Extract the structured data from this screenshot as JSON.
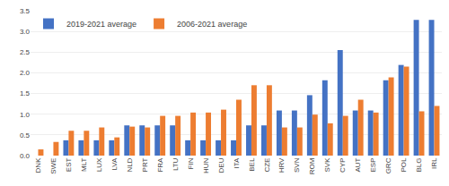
{
  "chart_data": {
    "type": "bar",
    "categories": [
      "DNK",
      "SWE",
      "EST",
      "MLT",
      "LUX",
      "LVA",
      "NLD",
      "PRT",
      "FRA",
      "LTU",
      "FIN",
      "HUN",
      "DEU",
      "ITA",
      "BEL",
      "CZE",
      "HRV",
      "SVN",
      "ROM",
      "SVK",
      "CYP",
      "AUT",
      "ESP",
      "GRC",
      "POL",
      "BLG",
      "IRL"
    ],
    "series": [
      {
        "name": "2019-2021 average",
        "color": "#4472C4",
        "values": [
          0.0,
          0.0,
          0.37,
          0.37,
          0.37,
          0.37,
          0.73,
          0.73,
          0.73,
          0.73,
          0.37,
          0.37,
          0.37,
          0.37,
          0.73,
          0.73,
          1.09,
          1.09,
          1.46,
          1.82,
          2.55,
          1.09,
          1.09,
          1.82,
          2.19,
          3.28,
          3.28
        ]
      },
      {
        "name": "2006-2021 average",
        "color": "#ED7D31",
        "values": [
          0.15,
          0.33,
          0.6,
          0.6,
          0.68,
          0.44,
          0.7,
          0.68,
          0.96,
          0.96,
          1.04,
          1.04,
          1.11,
          1.35,
          1.7,
          1.7,
          0.68,
          0.68,
          0.99,
          0.78,
          0.96,
          1.35,
          1.04,
          1.89,
          2.15,
          1.07,
          1.2
        ]
      }
    ],
    "ylim": [
      0,
      3.5
    ],
    "yticks": [
      {
        "value": 0,
        "label": "0.0"
      },
      0.5,
      {
        "value": 1,
        "label": "1.0"
      },
      1.5,
      {
        "value": 2,
        "label": "2.0"
      },
      2.5,
      {
        "value": 3,
        "label": "3.0"
      },
      3.5
    ],
    "grid": true,
    "legend": "upper left"
  }
}
